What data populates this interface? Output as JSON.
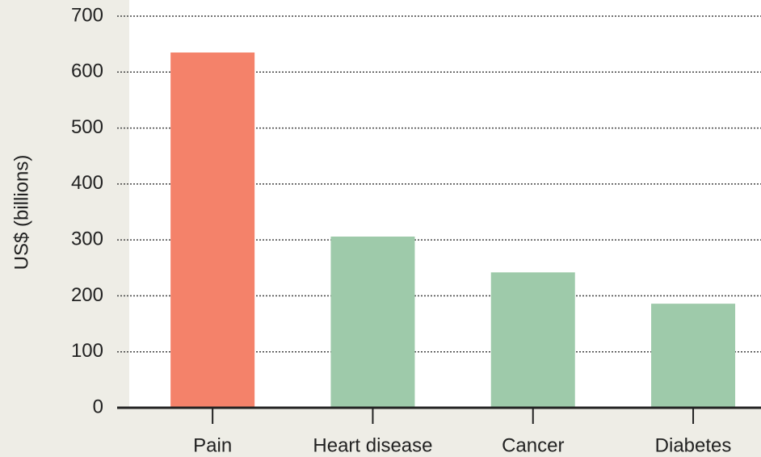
{
  "chart_data": {
    "type": "bar",
    "y_label": "US$ (billions)",
    "categories": [
      "Pain",
      "Heart disease",
      "Cancer",
      "Diabetes"
    ],
    "values": [
      635,
      306,
      242,
      186
    ],
    "colors": [
      "#f4826a",
      "#9ecaaa",
      "#9ecaaa",
      "#9ecaaa"
    ],
    "ylim": [
      0,
      700
    ],
    "yticks": [
      0,
      100,
      200,
      300,
      400,
      500,
      600,
      700
    ],
    "grid": true
  }
}
